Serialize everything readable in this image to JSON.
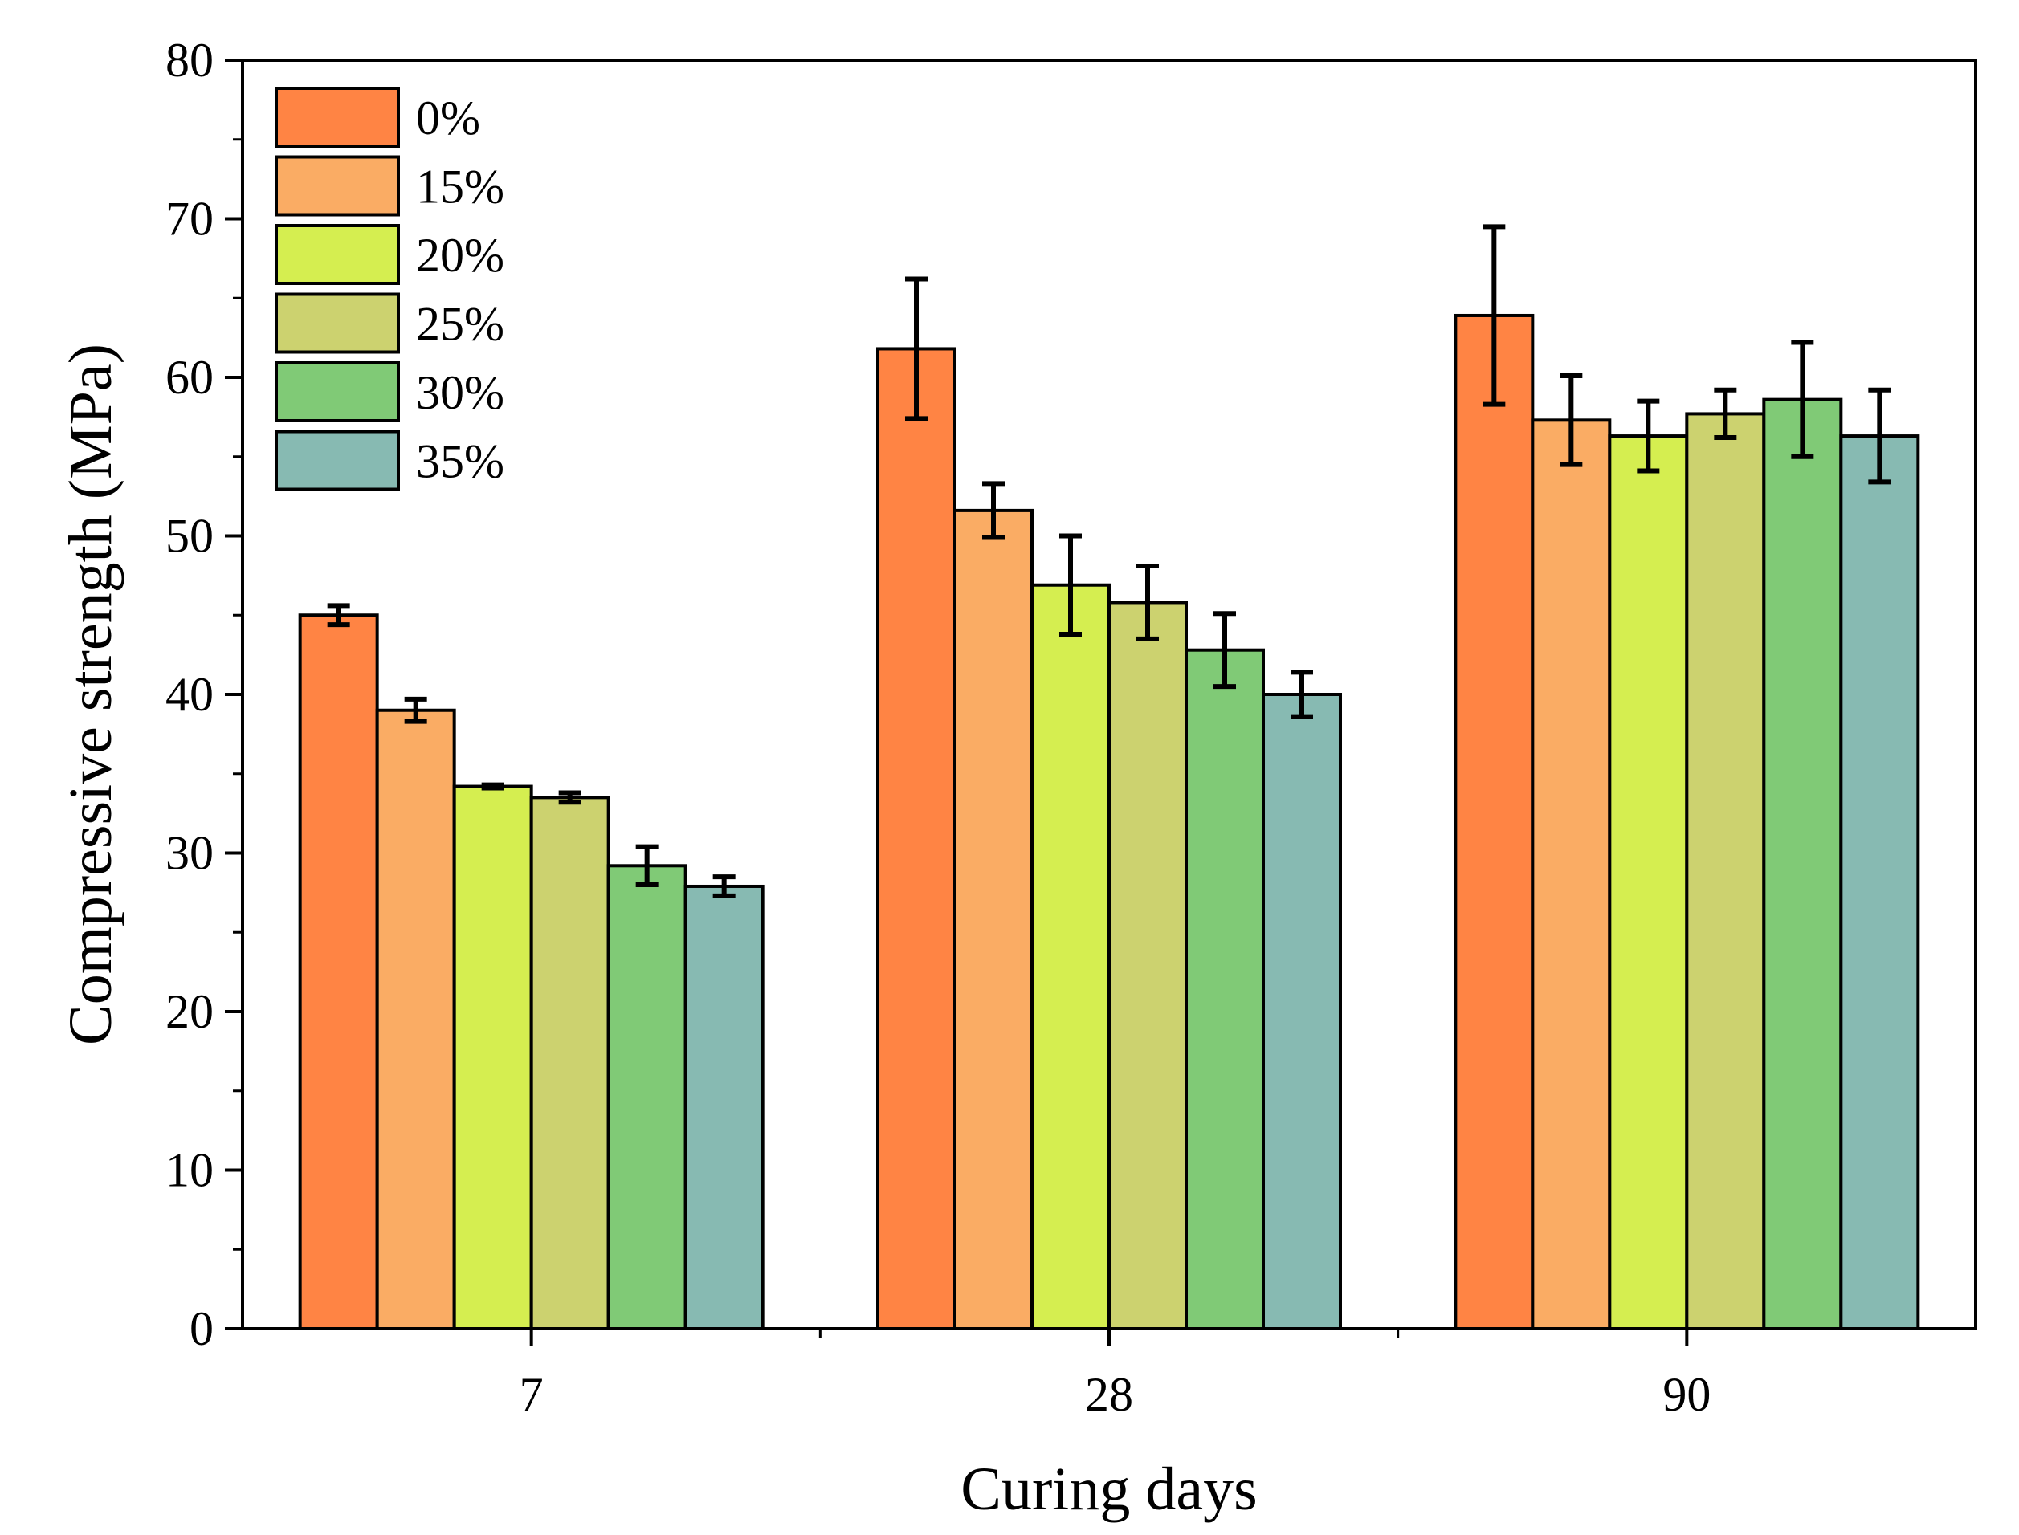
{
  "chart_data": {
    "type": "bar",
    "xlabel": "Curing days",
    "ylabel": "Compressive strength (MPa)",
    "ylim": [
      0,
      80
    ],
    "yticks": [
      0,
      10,
      20,
      30,
      40,
      50,
      60,
      70,
      80
    ],
    "categories": [
      "7",
      "28",
      "90"
    ],
    "legend_position": "top-left",
    "grid": false,
    "error_bars": true,
    "series": [
      {
        "name": "0%",
        "color": "#FF8444",
        "values": [
          45.0,
          61.8,
          63.9
        ],
        "errors": [
          0.6,
          4.4,
          5.6
        ]
      },
      {
        "name": "15%",
        "color": "#FAAC64",
        "values": [
          39.0,
          51.6,
          57.3
        ],
        "errors": [
          0.7,
          1.7,
          2.8
        ]
      },
      {
        "name": "20%",
        "color": "#D5EE50",
        "values": [
          34.2,
          46.9,
          56.3
        ],
        "errors": [
          0.1,
          3.1,
          2.2
        ]
      },
      {
        "name": "25%",
        "color": "#CCD26F",
        "values": [
          33.5,
          45.8,
          57.7
        ],
        "errors": [
          0.3,
          2.3,
          1.5
        ]
      },
      {
        "name": "30%",
        "color": "#80CA76",
        "values": [
          29.2,
          42.8,
          58.6
        ],
        "errors": [
          1.2,
          2.3,
          3.6
        ]
      },
      {
        "name": "35%",
        "color": "#87BAB2",
        "values": [
          27.9,
          40.0,
          56.3
        ],
        "errors": [
          0.6,
          1.4,
          2.9
        ]
      }
    ]
  }
}
